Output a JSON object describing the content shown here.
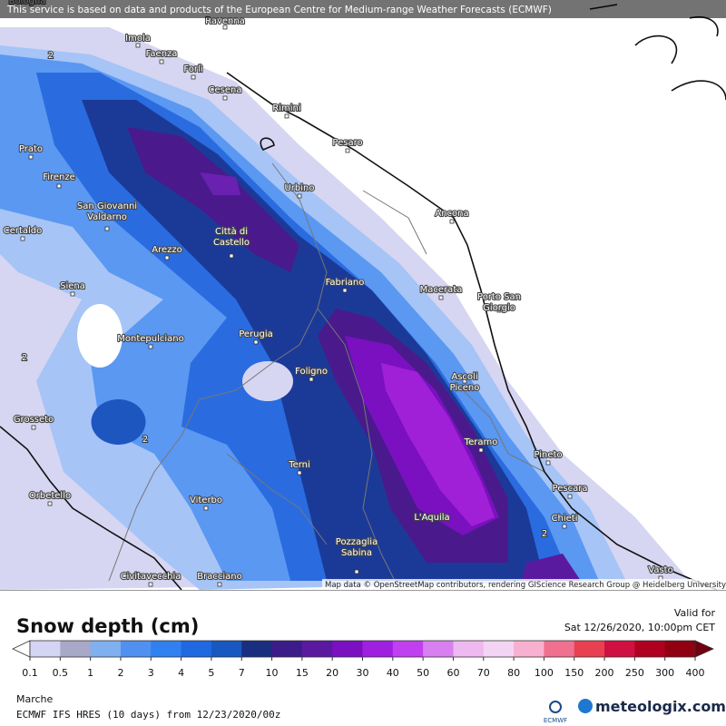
{
  "header": {
    "notice": "This service is based on data and products of the European Centre for Medium-range Weather Forecasts (ECMWF)"
  },
  "map": {
    "cities": [
      {
        "lines": [
          "Bologna"
        ]
      },
      {
        "lines": [
          "Ravenna"
        ]
      },
      {
        "lines": [
          "Imola"
        ]
      },
      {
        "lines": [
          "Faenza"
        ]
      },
      {
        "lines": [
          "Forlì"
        ]
      },
      {
        "lines": [
          "Cesena"
        ]
      },
      {
        "lines": [
          "Rimini"
        ]
      },
      {
        "lines": [
          "Pesaro"
        ]
      },
      {
        "lines": [
          "Prato"
        ]
      },
      {
        "lines": [
          "Firenze"
        ]
      },
      {
        "lines": [
          "Urbino"
        ]
      },
      {
        "lines": [
          "Ancona"
        ]
      },
      {
        "lines": [
          "San Giovanni",
          "Valdarno"
        ]
      },
      {
        "lines": [
          "Certaldo"
        ]
      },
      {
        "lines": [
          "Arezzo"
        ]
      },
      {
        "lines": [
          "Città di",
          "Castello"
        ]
      },
      {
        "lines": [
          "Fabriano"
        ]
      },
      {
        "lines": [
          "Macerata"
        ]
      },
      {
        "lines": [
          "Siena"
        ]
      },
      {
        "lines": [
          "Porto San",
          "Giorgio"
        ]
      },
      {
        "lines": [
          "Perugia"
        ]
      },
      {
        "lines": [
          "Montepulciano"
        ]
      },
      {
        "lines": [
          "Foligno"
        ]
      },
      {
        "lines": [
          "Ascoli",
          "Piceno"
        ]
      },
      {
        "lines": [
          "Grosseto"
        ]
      },
      {
        "lines": [
          "Teramo"
        ]
      },
      {
        "lines": [
          "Pineto"
        ]
      },
      {
        "lines": [
          "Terni"
        ]
      },
      {
        "lines": [
          "Pescara"
        ]
      },
      {
        "lines": [
          "Orbetello"
        ]
      },
      {
        "lines": [
          "Viterbo"
        ]
      },
      {
        "lines": [
          "L'Aquila"
        ]
      },
      {
        "lines": [
          "Chieti"
        ]
      },
      {
        "lines": [
          "Pozzaglia",
          "Sabina"
        ]
      },
      {
        "lines": [
          "Civitavecchia"
        ]
      },
      {
        "lines": [
          "Bracciano"
        ]
      },
      {
        "lines": [
          "Vasto"
        ]
      }
    ],
    "contour_labels": [
      2,
      2,
      2,
      2
    ],
    "attribution": "Map data © OpenStreetMap contributors, rendering GIScience Research Group @ Heidelberg University"
  },
  "legend": {
    "title": "Snow depth (cm)",
    "valid_label": "Valid for",
    "valid_time": "Sat 12/26/2020, 10:00pm CET",
    "ticks": [
      0.1,
      0.5,
      1,
      2,
      3,
      4,
      5,
      7,
      10,
      15,
      20,
      30,
      40,
      50,
      60,
      70,
      80,
      100,
      150,
      200,
      250,
      300,
      400
    ]
  },
  "footer": {
    "region": "Marche",
    "model": "ECMWF IFS HRES (10 days) from 12/23/2020/00z",
    "brand": "meteologix.com",
    "logo_text": "ECMWF"
  }
}
